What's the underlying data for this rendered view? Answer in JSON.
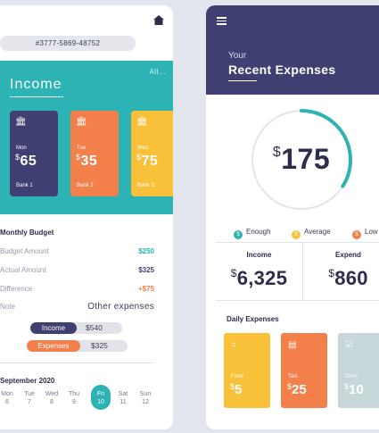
{
  "left": {
    "account_number": "#3777-5869-48752",
    "income": {
      "title": "Income",
      "all_link": "All...",
      "cards": [
        {
          "day": "Mon",
          "amount": "65",
          "bank": "Bank 1",
          "color": "#403f72"
        },
        {
          "day": "Tue",
          "amount": "35",
          "bank": "Bank 2",
          "color": "#f37f4a"
        },
        {
          "day": "Wed",
          "amount": "75",
          "bank": "Bank 3",
          "color": "#f9c13a"
        }
      ]
    },
    "budget": {
      "title": "Monthly Budget",
      "rows": [
        {
          "label": "Budget Amount",
          "value": "$250",
          "color": "#2db3b3"
        },
        {
          "label": "Actual Amount",
          "value": "$325",
          "color": "#403f72"
        },
        {
          "label": "Difference",
          "value": "+$75",
          "color": "#f37f4a"
        }
      ],
      "note_label": "Note",
      "note_value": "Other expenses",
      "tags": [
        {
          "label": "Income",
          "value": "$540",
          "color": "#403f72"
        },
        {
          "label": "Expenses",
          "value": "$325",
          "color": "#f37f4a"
        }
      ]
    },
    "calendar": {
      "month": "September 2020",
      "days": [
        {
          "name": "Mon",
          "num": "6"
        },
        {
          "name": "Tue",
          "num": "7"
        },
        {
          "name": "Wed",
          "num": "8"
        },
        {
          "name": "Thu",
          "num": "9"
        },
        {
          "name": "Fri",
          "num": "10"
        },
        {
          "name": "Sat",
          "num": "11"
        },
        {
          "name": "Sun",
          "num": "12"
        }
      ],
      "selected_day": "Fri"
    }
  },
  "right": {
    "header": {
      "subtitle": "Your",
      "title": "Recent Expenses"
    },
    "total": {
      "currency": "$",
      "amount": "175",
      "ring_fraction": 0.34
    },
    "legend": [
      {
        "label": "Enough",
        "color": "#2db3b3"
      },
      {
        "label": "Average",
        "color": "#f9c13a"
      },
      {
        "label": "Low",
        "color": "#f37f4a"
      }
    ],
    "stats": [
      {
        "label": "Income",
        "value": "6,325"
      },
      {
        "label": "Expend",
        "value": "860"
      }
    ],
    "daily": {
      "title": "Daily Expenses",
      "items": [
        {
          "label": "Food",
          "amount": "5",
          "color": "#f9c13a",
          "icon": "bowl-icon"
        },
        {
          "label": "Taxi",
          "amount": "25",
          "color": "#f37f4a",
          "icon": "taxi-icon"
        },
        {
          "label": "Drink",
          "amount": "10",
          "color": "#c6d6d9",
          "icon": "cup-icon"
        }
      ]
    }
  }
}
